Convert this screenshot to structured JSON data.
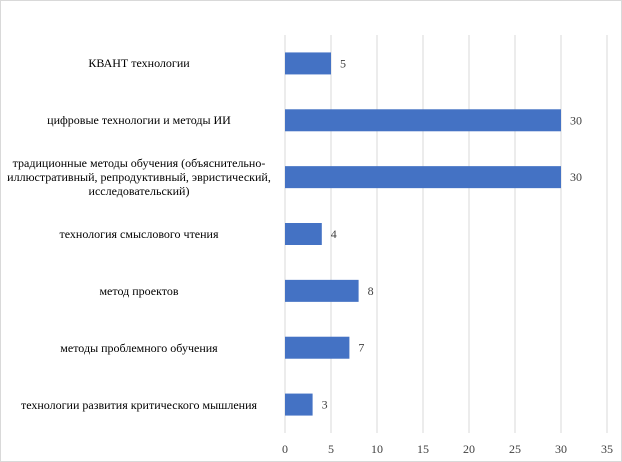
{
  "chart_data": {
    "type": "bar",
    "orientation": "horizontal",
    "categories": [
      "КВАНТ технологии",
      "цифровые технологии  и методы ИИ",
      "традиционные  методы обучения (объяснительно-\nиллюстративный, репродуктивный, эвристический,\nисследовательский)",
      "технология смыслового чтения",
      "метод проектов",
      "методы проблемного обучения",
      "технологии  развития критического мышления"
    ],
    "values": [
      5,
      30,
      30,
      4,
      8,
      7,
      3
    ],
    "value_labels": [
      "5",
      "30",
      "30",
      "4",
      "8",
      "7",
      "3"
    ],
    "x_ticks": [
      "0",
      "5",
      "10",
      "15",
      "20",
      "25",
      "30",
      "35"
    ],
    "xlim": [
      0,
      35
    ],
    "title": "",
    "xlabel": "",
    "ylabel": "",
    "grid": "vertical",
    "legend": "none",
    "bar_color": "#4472c4",
    "grid_color": "#d9d9d9"
  }
}
